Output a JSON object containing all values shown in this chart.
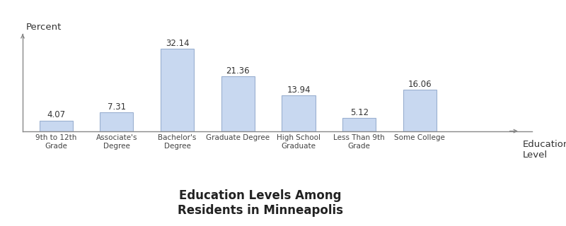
{
  "categories": [
    "9th to 12th\nGrade",
    "Associate's\nDegree",
    "Bachelor's\nDegree",
    "Graduate Degree",
    "High School\nGraduate",
    "Less Than 9th\nGrade",
    "Some College"
  ],
  "values": [
    4.07,
    7.31,
    32.14,
    21.36,
    13.94,
    5.12,
    16.06
  ],
  "bar_color": "#c8d8f0",
  "bar_edgecolor": "#9ab0d0",
  "title": "Education Levels Among\nResidents in Minneapolis",
  "title_fontsize": 12,
  "title_fontweight": "bold",
  "ylabel": "Percent",
  "xlabel": "Education\nLevel",
  "ylabel_fontsize": 9.5,
  "xlabel_fontsize": 9.5,
  "value_fontsize": 8.5,
  "tick_fontsize": 7.5,
  "ylim": [
    0,
    38
  ],
  "background_color": "#ffffff"
}
